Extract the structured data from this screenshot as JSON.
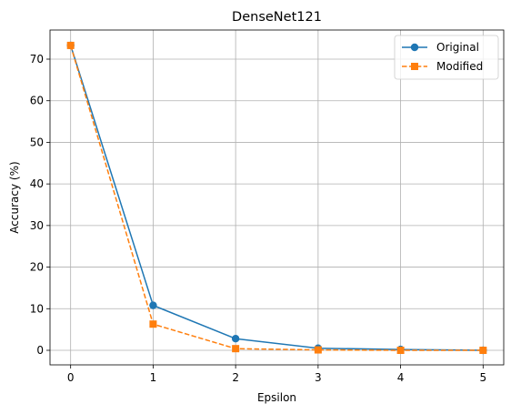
{
  "chart_data": {
    "type": "line",
    "title": "DenseNet121",
    "xlabel": "Epsilon",
    "ylabel": "Accuracy (%)",
    "x": [
      0,
      1,
      2,
      3,
      4,
      5
    ],
    "xlim": [
      -0.25,
      5.25
    ],
    "ylim": [
      -3.5,
      77
    ],
    "xticks": [
      0,
      1,
      2,
      3,
      4,
      5
    ],
    "yticks": [
      0,
      10,
      20,
      30,
      40,
      50,
      60,
      70
    ],
    "grid": true,
    "legend_position": "top-right",
    "series": [
      {
        "name": "Original",
        "values": [
          73.3,
          10.8,
          2.8,
          0.5,
          0.2,
          0.0
        ],
        "color": "#1f77b4",
        "line_style": "solid",
        "marker": "circle"
      },
      {
        "name": "Modified",
        "values": [
          73.3,
          6.3,
          0.4,
          0.1,
          0.0,
          0.0
        ],
        "color": "#ff7f0e",
        "line_style": "dashed",
        "marker": "square"
      }
    ]
  }
}
